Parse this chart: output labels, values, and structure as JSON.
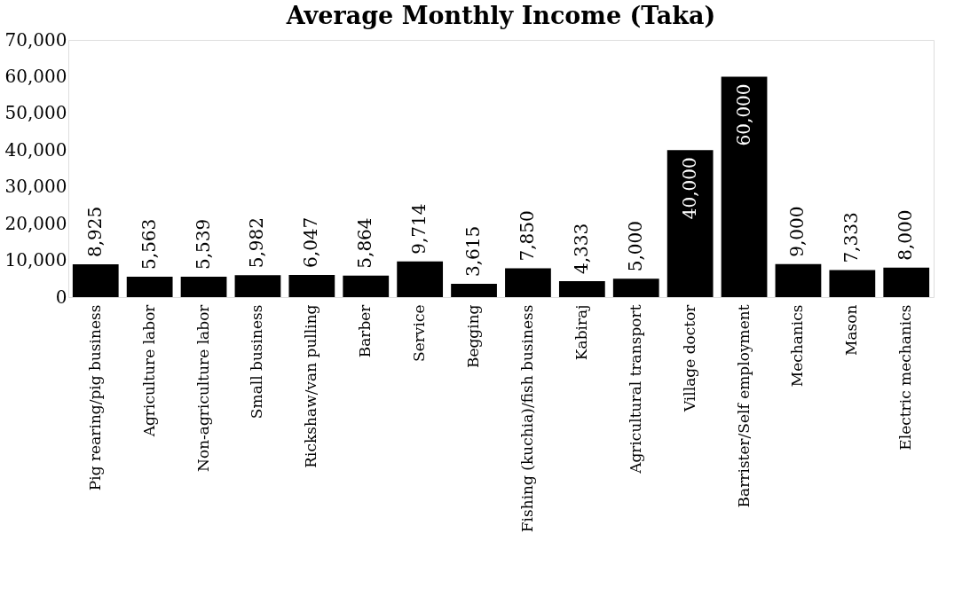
{
  "chart_data": {
    "type": "bar",
    "title": "Average Monthly Income (Taka)",
    "categories": [
      "Pig rearing/pig business",
      "Agriculture labor",
      "Non-agriculture labor",
      "Small business",
      "Rickshaw/van pulling",
      "Barber",
      "Service",
      "Begging",
      "Fishing (kuchia)/fish business",
      "Kabiraj",
      "Agricultural transport",
      "Village doctor",
      "Barrister/Self employment",
      "Mechanics",
      "Mason",
      "Electric mechanics"
    ],
    "values": [
      8925,
      5563,
      5539,
      5982,
      6047,
      5864,
      9714,
      3615,
      7850,
      4333,
      5000,
      40000,
      60000,
      9000,
      7333,
      8000
    ],
    "color": "#000000",
    "ylim": [
      0,
      70000
    ],
    "yticks": [
      {
        "value": 0,
        "label": "0"
      },
      {
        "value": 10000,
        "label": "10,000"
      },
      {
        "value": 20000,
        "label": "20,000"
      },
      {
        "value": 30000,
        "label": "30,000"
      },
      {
        "value": 40000,
        "label": "40,000"
      },
      {
        "value": 50000,
        "label": "50,000"
      },
      {
        "value": 60000,
        "label": "60,000"
      },
      {
        "value": 70000,
        "label": "70,000"
      }
    ],
    "value_labels": [
      "8,925",
      "5,563",
      "5,539",
      "5,982",
      "6,047",
      "5,864",
      "9,714",
      "3,615",
      "7,850",
      "4,333",
      "5,000",
      "40,000",
      "60,000",
      "9,000",
      "7,333",
      "8,000"
    ],
    "grid": false
  }
}
